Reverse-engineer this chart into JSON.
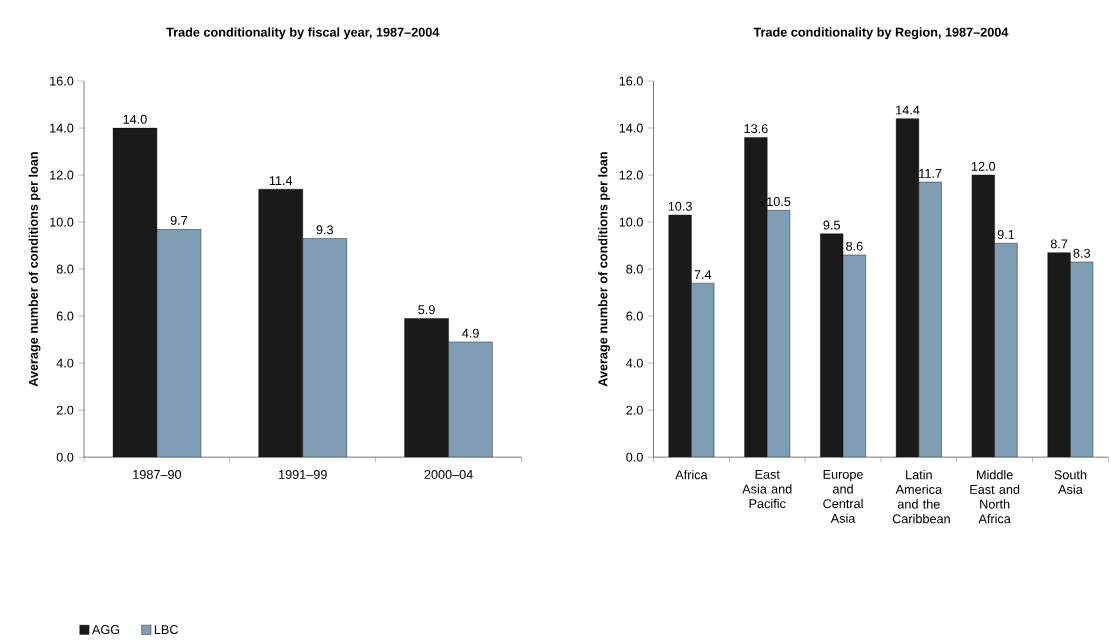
{
  "chart_data": [
    {
      "type": "bar",
      "title": "Trade conditionality by fiscal year, 1987–2004",
      "ylabel": "Average number of conditions per loan",
      "categories": [
        "1987–90",
        "1991–99",
        "2000–04"
      ],
      "series": [
        {
          "name": "AGG",
          "color": "#1a1a1a",
          "values": [
            14.0,
            11.4,
            5.9
          ],
          "value_labels": [
            "14.0",
            "11.4",
            "5.9"
          ]
        },
        {
          "name": "LBC",
          "color": "#7f9db3",
          "values": [
            9.7,
            9.3,
            4.9
          ],
          "value_labels": [
            "9.7",
            "9.3",
            "4.9"
          ]
        }
      ],
      "ylim": [
        0,
        16
      ],
      "yticks": [
        {
          "value": 0,
          "label": "0.0"
        },
        {
          "value": 2,
          "label": "2.0"
        },
        {
          "value": 4,
          "label": "4.0"
        },
        {
          "value": 6,
          "label": "6.0"
        },
        {
          "value": 8,
          "label": "8.0"
        },
        {
          "value": 10,
          "label": "10.0"
        },
        {
          "value": 12,
          "label": "12.0"
        },
        {
          "value": 14,
          "label": "14.0"
        },
        {
          "value": 16,
          "label": "16.0"
        }
      ],
      "legend": "bottom left"
    },
    {
      "type": "bar",
      "title": "Trade conditionality by Region, 1987–2004",
      "ylabel": "Average number of conditions per loan",
      "categories": [
        "Africa",
        "East Asia and Pacific",
        "Europe and Central Asia",
        "Latin America and the Caribbean",
        "Middle East and North Africa",
        "South Asia"
      ],
      "series": [
        {
          "color": "#1a1a1a",
          "values": [
            10.3,
            13.6,
            9.5,
            14.4,
            12.0,
            8.7
          ],
          "value_labels": [
            "10.3",
            "13.6",
            "9.5",
            "14.4",
            "12.0",
            "8.7"
          ]
        },
        {
          "color": "#7f9db3",
          "values": [
            7.4,
            10.5,
            8.6,
            11.7,
            9.1,
            8.3
          ],
          "value_labels": [
            "7.4",
            "10.5",
            "8.6",
            "11.7",
            "9.1",
            "8.3"
          ]
        }
      ],
      "ylim": [
        0,
        16
      ],
      "yticks": [
        {
          "value": 0,
          "label": "0.0"
        },
        {
          "value": 2,
          "label": "2.0"
        },
        {
          "value": 4,
          "label": "4.0"
        },
        {
          "value": 6,
          "label": "6.0"
        },
        {
          "value": 8,
          "label": "8.0"
        },
        {
          "value": 10,
          "label": "10.0"
        },
        {
          "value": 12,
          "label": "12.0"
        },
        {
          "value": 14,
          "label": "14.0"
        },
        {
          "value": 16,
          "label": "16.0"
        }
      ]
    }
  ]
}
